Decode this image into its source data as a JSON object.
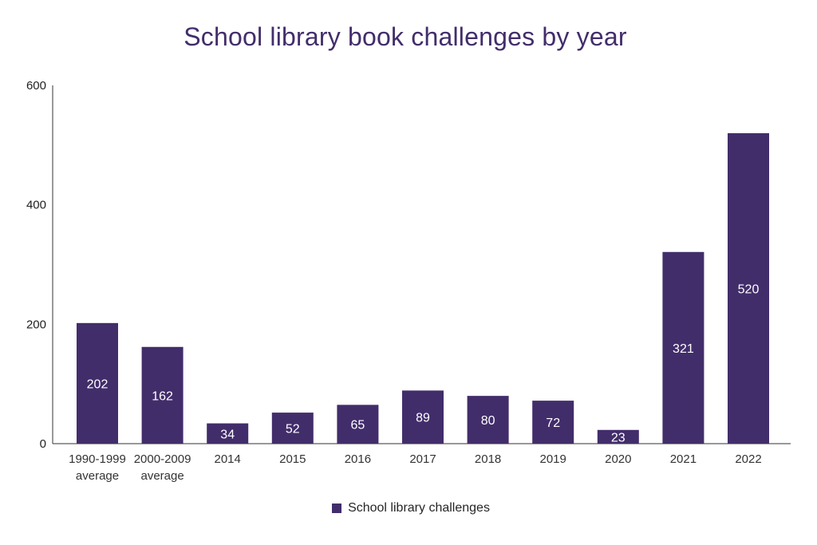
{
  "chart_data": {
    "type": "bar",
    "title": "School library book challenges by year",
    "categories": [
      [
        "1990-1999",
        "average"
      ],
      [
        "2000-2009",
        "average"
      ],
      [
        "2014"
      ],
      [
        "2015"
      ],
      [
        "2016"
      ],
      [
        "2017"
      ],
      [
        "2018"
      ],
      [
        "2019"
      ],
      [
        "2020"
      ],
      [
        "2021"
      ],
      [
        "2022"
      ]
    ],
    "series": [
      {
        "name": "School library challenges",
        "values": [
          202,
          162,
          34,
          52,
          65,
          89,
          80,
          72,
          23,
          321,
          520
        ],
        "color": "#422d6b"
      }
    ],
    "xlabel": "",
    "ylabel": "",
    "ylim": [
      0,
      600
    ],
    "yticks": [
      0,
      200,
      400,
      600
    ],
    "grid": false,
    "data_labels": true,
    "legend_position": "bottom"
  }
}
